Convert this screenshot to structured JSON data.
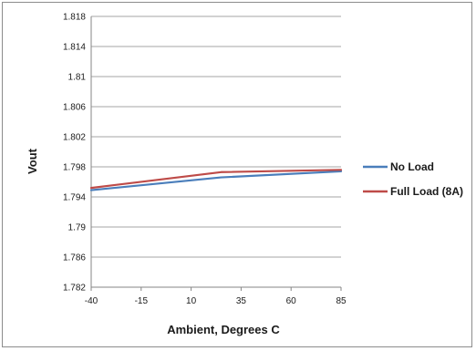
{
  "chart_data": {
    "type": "line",
    "title": "",
    "xlabel": "Ambient, Degrees C",
    "ylabel": "Vout",
    "x_tick_labels": [
      "-40",
      "-15",
      "10",
      "35",
      "60",
      "85"
    ],
    "y_tick_labels": [
      "1.782",
      "1.786",
      "1.79",
      "1.794",
      "1.798",
      "1.802",
      "1.806",
      "1.81",
      "1.814",
      "1.818"
    ],
    "xlim": [
      -40,
      85
    ],
    "ylim": [
      1.782,
      1.818
    ],
    "grid": "horizontal",
    "legend_position": "right",
    "x": [
      -40,
      25,
      85
    ],
    "series": [
      {
        "name": "No Load",
        "color": "#4a7ebb",
        "values": [
          1.7949,
          1.7966,
          1.7974
        ]
      },
      {
        "name": "Full Load (8A)",
        "color": "#be4b48",
        "values": [
          1.7952,
          1.7973,
          1.7976
        ]
      }
    ]
  }
}
